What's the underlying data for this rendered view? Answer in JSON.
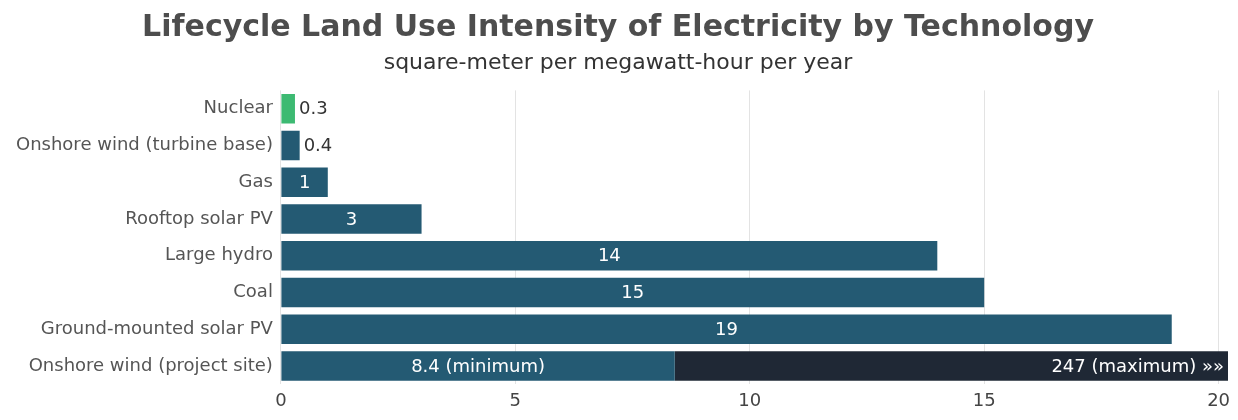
{
  "chart_data": {
    "type": "bar",
    "orientation": "horizontal",
    "stacked": true,
    "title": "Lifecycle Land Use Intensity of Electricity by Technology",
    "subtitle": "square-meter per megawatt-hour per year",
    "categories": [
      "Nuclear",
      "Onshore wind (turbine base)",
      "Gas",
      "Rooftop solar PV",
      "Large hydro",
      "Coal",
      "Ground-mounted solar PV",
      "Onshore wind (project site)"
    ],
    "series": [
      {
        "colors": [
          "#3dba72",
          "#245a73",
          "#245a73",
          "#245a73",
          "#245a73",
          "#245a73",
          "#245a73",
          "#245a73"
        ],
        "values": [
          0.3,
          0.4,
          1,
          3,
          14,
          15,
          19,
          8.4
        ],
        "value_labels": [
          "0.3",
          "0.4",
          "1",
          "3",
          "14",
          "15",
          "19",
          "8.4 (minimum)"
        ]
      },
      {
        "color": "#1f2835",
        "values": [
          null,
          null,
          null,
          null,
          null,
          null,
          null,
          11.8
        ]
      }
    ],
    "annotations": [
      "247 (maximum) »»"
    ],
    "xlim": [
      0,
      20.2
    ],
    "xticks": [
      0,
      5,
      10,
      15,
      20
    ],
    "grid": "x",
    "legend": false
  }
}
